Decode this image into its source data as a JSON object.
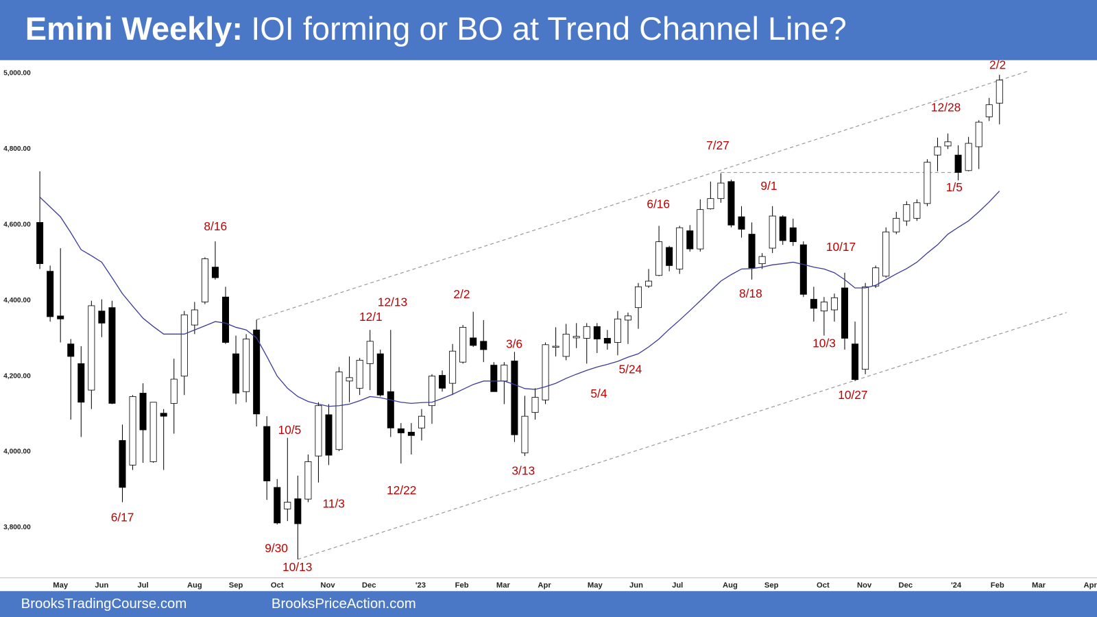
{
  "chart_data": {
    "type": "candlestick",
    "title_lead": "Emini Weekly:",
    "title": "IOI forming or BO at Trend Channel Line?",
    "footer": [
      "BrooksTradingCourse.com",
      "BrooksPriceAction.com"
    ],
    "up_color": "#ffffff",
    "down_color": "#000000",
    "open": [
      4606,
      4477,
      4359,
      4285,
      4233,
      4163,
      4372,
      4381,
      4030,
      3965,
      4155,
      3974,
      4102,
      4128,
      4200,
      4335,
      4396,
      4488,
      4409,
      4259,
      4159,
      4322,
      4067,
      3906,
      3849,
      3876,
      3875,
      3989,
      4098,
      4006,
      4187,
      4168,
      4233,
      4259,
      4159,
      4061,
      4052,
      4063,
      4122,
      4202,
      4181,
      4237,
      4301,
      4292,
      4229,
      4187,
      4240,
      3997,
      4104,
      4137,
      4276,
      4252,
      4301,
      4300,
      4331,
      4300,
      4289,
      4348,
      4381,
      4438,
      4466,
      4540,
      4483,
      4584,
      4536,
      4642,
      4669,
      4714,
      4621,
      4575,
      4497,
      4538,
      4621,
      4592,
      4547,
      4403,
      4372,
      4375,
      4433,
      4285,
      4218,
      4438,
      4464,
      4581,
      4610,
      4617,
      4656,
      4784,
      4808,
      4784,
      4743,
      4806,
      4885,
      4921
    ],
    "high": [
      4741,
      4492,
      4538,
      4298,
      4279,
      4399,
      4403,
      4399,
      4072,
      4150,
      4181,
      4131,
      4113,
      4246,
      4372,
      4396,
      4514,
      4556,
      4436,
      4307,
      4311,
      4349,
      4094,
      3928,
      4037,
      3937,
      3993,
      4131,
      4126,
      4224,
      4252,
      4248,
      4322,
      4270,
      4322,
      4076,
      4076,
      4113,
      4205,
      4215,
      4285,
      4335,
      4370,
      4348,
      4237,
      4237,
      4264,
      4148,
      4168,
      4289,
      4329,
      4338,
      4340,
      4340,
      4340,
      4322,
      4372,
      4368,
      4446,
      4483,
      4597,
      4544,
      4597,
      4599,
      4667,
      4714,
      4736,
      4719,
      4649,
      4606,
      4525,
      4649,
      4625,
      4616,
      4556,
      4436,
      4409,
      4418,
      4473,
      4344,
      4446,
      4492,
      4593,
      4634,
      4662,
      4667,
      4773,
      4830,
      4841,
      4810,
      4832,
      4876,
      4935,
      4996
    ],
    "low": [
      4483,
      4344,
      4289,
      4085,
      4039,
      4113,
      4303,
      4126,
      3867,
      3952,
      3971,
      3971,
      3952,
      4048,
      4150,
      4311,
      4390,
      4455,
      4285,
      4126,
      4131,
      4067,
      3873,
      3808,
      3817,
      3716,
      3867,
      3919,
      3965,
      4002,
      4131,
      4150,
      4163,
      4146,
      4039,
      3969,
      3993,
      4030,
      4074,
      4159,
      4150,
      4233,
      4277,
      4237,
      4159,
      4126,
      4026,
      3989,
      4085,
      4126,
      4252,
      4242,
      4274,
      4233,
      4261,
      4270,
      4255,
      4285,
      4325,
      4433,
      4464,
      4477,
      4470,
      4529,
      4529,
      4640,
      4658,
      4593,
      4566,
      4455,
      4483,
      4525,
      4547,
      4544,
      4409,
      4344,
      4307,
      4344,
      4270,
      4187,
      4205,
      4433,
      4460,
      4575,
      4597,
      4610,
      4649,
      4741,
      4800,
      4717,
      4741,
      4747,
      4874,
      4865
    ],
    "close": [
      4497,
      4357,
      4351,
      4252,
      4131,
      4386,
      4340,
      4128,
      3906,
      4146,
      4058,
      4131,
      4094,
      4192,
      4362,
      4375,
      4510,
      4460,
      4289,
      4155,
      4298,
      4100,
      3923,
      3812,
      3867,
      3810,
      3974,
      4122,
      3991,
      4211,
      4196,
      4242,
      4292,
      4150,
      4063,
      4050,
      4043,
      4094,
      4200,
      4168,
      4266,
      4329,
      4281,
      4270,
      4159,
      4229,
      4045,
      4094,
      4144,
      4283,
      4279,
      4311,
      4305,
      4331,
      4298,
      4287,
      4351,
      4359,
      4436,
      4451,
      4555,
      4492,
      4592,
      4536,
      4640,
      4669,
      4710,
      4599,
      4588,
      4486,
      4516,
      4623,
      4558,
      4555,
      4416,
      4379,
      4396,
      4407,
      4300,
      4191,
      4436,
      4486,
      4581,
      4617,
      4653,
      4658,
      4765,
      4806,
      4819,
      4738,
      4815,
      4871,
      4917,
      4982
    ],
    "ma": {
      "color": "#3b3b9c",
      "values": [
        4673,
        4647,
        4621,
        4579,
        4534,
        4518,
        4501,
        4460,
        4418,
        4385,
        4353,
        4331,
        4311,
        4311,
        4311,
        4322,
        4333,
        4344,
        4340,
        4329,
        4322,
        4301,
        4252,
        4200,
        4168,
        4146,
        4133,
        4126,
        4120,
        4122,
        4126,
        4135,
        4146,
        4143,
        4137,
        4131,
        4128,
        4130,
        4131,
        4141,
        4152,
        4165,
        4178,
        4187,
        4187,
        4187,
        4178,
        4167,
        4165,
        4172,
        4181,
        4194,
        4205,
        4215,
        4224,
        4231,
        4239,
        4250,
        4259,
        4277,
        4298,
        4324,
        4348,
        4373,
        4399,
        4425,
        4451,
        4468,
        4483,
        4484,
        4488,
        4494,
        4497,
        4501,
        4495,
        4488,
        4483,
        4473,
        4455,
        4433,
        4433,
        4440,
        4455,
        4470,
        4484,
        4501,
        4525,
        4547,
        4575,
        4593,
        4610,
        4634,
        4660,
        4689
      ]
    },
    "lines": [
      {
        "color": "#9a9a9a",
        "x": [
          21,
          95.8
        ],
        "y": [
          4349,
          5006
        ]
      },
      {
        "color": "#9a9a9a",
        "x": [
          25,
          99.5
        ],
        "y": [
          3716,
          4368
        ]
      },
      {
        "color": "#9a9a9a",
        "x": [
          66,
          89
        ],
        "y": [
          4738,
          4738
        ]
      }
    ],
    "xlim": [
      -3.86,
      102.45
    ],
    "xticks": [
      {
        "value": 2,
        "label": "May"
      },
      {
        "value": 6,
        "label": "Jun"
      },
      {
        "value": 10,
        "label": "Jul"
      },
      {
        "value": 15,
        "label": "Aug"
      },
      {
        "value": 19,
        "label": "Sep"
      },
      {
        "value": 23,
        "label": "Oct"
      },
      {
        "value": 27.9,
        "label": "Nov"
      },
      {
        "value": 31.9,
        "label": "Dec"
      },
      {
        "value": 36.9,
        "label": "'23"
      },
      {
        "value": 40.9,
        "label": "Feb"
      },
      {
        "value": 44.9,
        "label": "Mar"
      },
      {
        "value": 48.9,
        "label": "Apr"
      },
      {
        "value": 53.8,
        "label": "May"
      },
      {
        "value": 57.8,
        "label": "Jun"
      },
      {
        "value": 61.8,
        "label": "Jul"
      },
      {
        "value": 66.9,
        "label": "Aug"
      },
      {
        "value": 70.9,
        "label": "Sep"
      },
      {
        "value": 75.9,
        "label": "Oct"
      },
      {
        "value": 79.9,
        "label": "Nov"
      },
      {
        "value": 83.9,
        "label": "Dec"
      },
      {
        "value": 88.8,
        "label": "'24"
      },
      {
        "value": 92.8,
        "label": "Feb"
      },
      {
        "value": 96.8,
        "label": "Mar"
      },
      {
        "value": 101.8,
        "label": "Apr"
      }
    ],
    "ylim": [
      3632,
      5031
    ],
    "yticks": [
      {
        "value": 3800,
        "label": "3,800.00"
      },
      {
        "value": 4000,
        "label": "4,000.00"
      },
      {
        "value": 4200,
        "label": "4,200.00"
      },
      {
        "value": 4400,
        "label": "4,400.00"
      },
      {
        "value": 4600,
        "label": "4,600.00"
      },
      {
        "value": 4800,
        "label": "4,800.00"
      },
      {
        "value": 5000,
        "label": "5,000.00"
      }
    ],
    "grid": false,
    "annotations": [
      "8/16",
      "6/17",
      "9/30",
      "10/13",
      "10/5",
      "11/3",
      "12/1",
      "12/13",
      "12/22",
      "2/2",
      "3/6",
      "3/13",
      "5/4",
      "5/24",
      "6/16",
      "7/27",
      "9/1",
      "8/18",
      "10/17",
      "10/3",
      "10/27",
      "12/28",
      "1/5",
      "2/2"
    ]
  }
}
